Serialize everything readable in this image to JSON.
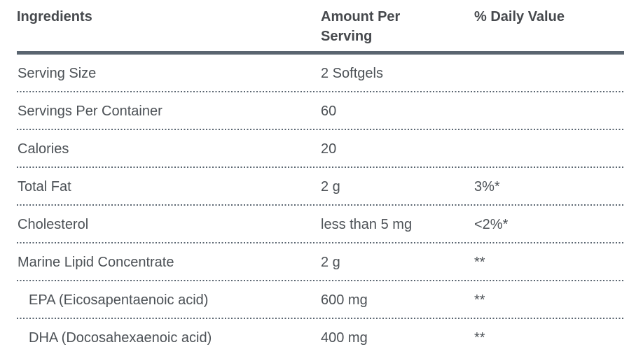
{
  "table": {
    "headers": {
      "ingredients": "Ingredients",
      "amount": "Amount Per Serving",
      "daily_value": "% Daily Value"
    },
    "rows": [
      {
        "ingredient": "Serving Size",
        "amount": "2 Softgels",
        "daily_value": ""
      },
      {
        "ingredient": "Servings Per Container",
        "amount": "60",
        "daily_value": ""
      },
      {
        "ingredient": "Calories",
        "amount": "20",
        "daily_value": ""
      },
      {
        "ingredient": "Total Fat",
        "amount": "2 g",
        "daily_value": "3%*"
      },
      {
        "ingredient": "Cholesterol",
        "amount": "less than 5 mg",
        "daily_value": "<2%*"
      },
      {
        "ingredient": "Marine Lipid Concentrate",
        "amount": "2 g",
        "daily_value": "**"
      },
      {
        "ingredient": "EPA (Eicosapentaenoic acid)",
        "amount": "600 mg",
        "daily_value": "**"
      },
      {
        "ingredient": "DHA (Docosahexaenoic acid)",
        "amount": "400 mg",
        "daily_value": "**"
      }
    ],
    "colors": {
      "rule": "#5a6570",
      "header_text": "#46494d",
      "body_text": "#4c5156"
    }
  }
}
